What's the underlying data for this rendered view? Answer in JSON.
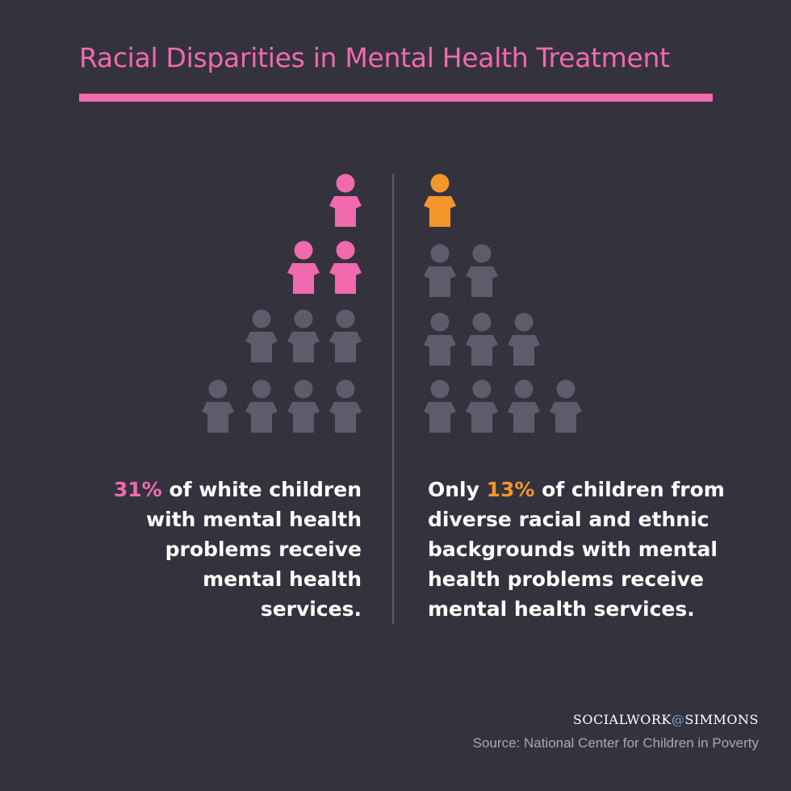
{
  "title": "Racial Disparities in Mental Health Treatment",
  "colors": {
    "background": "#34333d",
    "accent_pink": "#f06aad",
    "accent_orange": "#f5962a",
    "person_gray": "#5d5c6b",
    "text": "#ffffff",
    "source_text": "#a9a8b0"
  },
  "left_panel": {
    "icon": "person-icon",
    "highlighted_count": 3,
    "total_count": 10,
    "stat_percent": "31%",
    "stat_text": " of white children with mental health problems receive mental health services."
  },
  "right_panel": {
    "icon": "person-icon",
    "highlighted_count": 1,
    "total_count": 10,
    "stat_prefix": "Only ",
    "stat_percent": "13%",
    "stat_text": " of children from diverse racial and ethnic backgrounds with mental health problems receive mental health services."
  },
  "footer": {
    "brand_left": "SOCIALWORK",
    "brand_at": "@",
    "brand_right": "SIMMONS",
    "source": "Source: National Center for Children in Poverty"
  }
}
